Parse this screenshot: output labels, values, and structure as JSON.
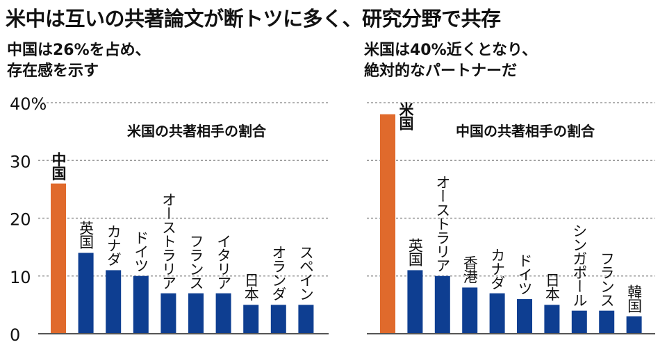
{
  "headline": "米中は互いの共著論文が断トツに多く、研究分野で共存",
  "subtitles": {
    "left": [
      "中国は26%を占め、",
      "存在感を示す"
    ],
    "right": [
      "米国は40%近くとなり、",
      "絶対的なパートナーだ"
    ]
  },
  "colors": {
    "highlight": "#e06a2c",
    "bar": "#0e3e91",
    "grid": "#999999"
  },
  "chart_data": [
    {
      "type": "bar",
      "title": "米国の共著相手の割合",
      "ylabel": "%",
      "ylim": [
        0,
        40
      ],
      "yticks": [
        "0",
        "10",
        "20",
        "30",
        "40%"
      ],
      "categories": [
        "中国",
        "英国",
        "カナダ",
        "ドイツ",
        "オーストラリア",
        "フランス",
        "イタリア",
        "日本",
        "オランダ",
        "スペイン"
      ],
      "values": [
        26,
        14,
        11,
        10,
        7,
        7,
        7,
        5,
        5,
        5
      ],
      "highlight": "中国"
    },
    {
      "type": "bar",
      "title": "中国の共著相手の割合",
      "ylabel": "%",
      "ylim": [
        0,
        40
      ],
      "categories": [
        "米国",
        "英国",
        "オーストラリア",
        "香港",
        "カナダ",
        "ドイツ",
        "日本",
        "シンガポール",
        "フランス",
        "韓国"
      ],
      "values": [
        38,
        11,
        10,
        8,
        7,
        6,
        5,
        4,
        4,
        3
      ],
      "highlight": "米国"
    }
  ]
}
